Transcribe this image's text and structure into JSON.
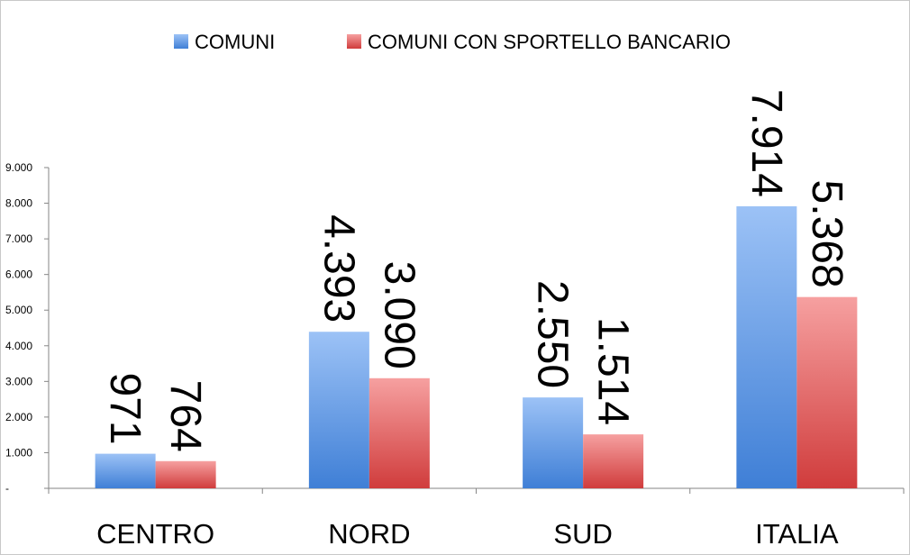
{
  "chart_data": {
    "type": "bar",
    "categories": [
      "CENTRO",
      "NORD",
      "SUD",
      "ITALIA"
    ],
    "series": [
      {
        "name": "COMUNI",
        "values": [
          971,
          4393,
          2550,
          7914
        ],
        "labels": [
          "971",
          "4.393",
          "2.550",
          "7.914"
        ]
      },
      {
        "name": "COMUNI CON SPORTELLO BANCARIO",
        "values": [
          764,
          3090,
          1514,
          5368
        ],
        "labels": [
          "764",
          "3.090",
          "1.514",
          "5.368"
        ]
      }
    ],
    "ylim": [
      0,
      9000
    ],
    "yticks": [
      0,
      1000,
      2000,
      3000,
      4000,
      5000,
      6000,
      7000,
      8000,
      9000
    ],
    "ytick_labels": [
      "-",
      "1.000",
      "2.000",
      "3.000",
      "4.000",
      "5.000",
      "6.000",
      "7.000",
      "8.000",
      "9.000"
    ],
    "legend_position": "top-center",
    "grid": false,
    "colors": {
      "series1_top": "#9cc2f6",
      "series1_bottom": "#3f7fd6",
      "series2_top": "#f6a0a0",
      "series2_bottom": "#d03c3c",
      "axis": "#868686"
    }
  }
}
